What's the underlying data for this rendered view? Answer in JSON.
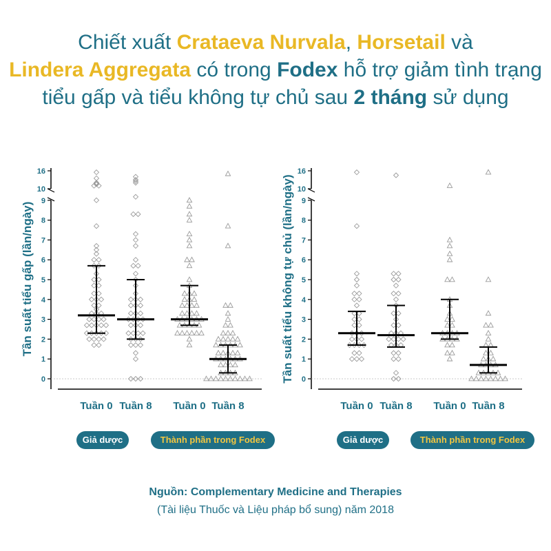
{
  "title": {
    "line1_a": "Chiết xuất ",
    "line1_hl1": "Crataeva Nurvala",
    "line1_b": ", ",
    "line1_hl2": "Horsetail",
    "line1_c": " và",
    "line2_hl": "Lindera Aggregata",
    "line2_a": " có trong ",
    "line2_brand": "Fodex",
    "line2_b": " hỗ trợ giảm tình trạng",
    "line3_a": "tiểu gấp và tiểu không tự chủ sau ",
    "line3_bold": "2 tháng",
    "line3_b": " sử dụng"
  },
  "colors": {
    "primary": "#1f6f86",
    "accent": "#e9b825",
    "marker": "#9a9a9a",
    "bar": "#000000"
  },
  "chart_data": [
    {
      "type": "scatter",
      "ylabel": "Tần suất tiểu gấp (lần/ngày)",
      "yticks_lower": [
        "0",
        "1",
        "2",
        "3",
        "4",
        "5",
        "6",
        "7",
        "8",
        "9"
      ],
      "yticks_upper": [
        "10",
        "16"
      ],
      "y_break": [
        9,
        10
      ],
      "ylim": [
        0,
        16
      ],
      "categories": [
        "Tuần 0",
        "Tuần 8",
        "Tuần 0",
        "Tuần 8"
      ],
      "groups": [
        {
          "name": "Giả dược",
          "marker": "diamond",
          "indices": [
            0,
            1
          ]
        },
        {
          "name": "Thành phần trong Fodex",
          "marker": "triangle",
          "indices": [
            2,
            3
          ]
        }
      ],
      "summary": [
        {
          "median": 3.2,
          "lower": 2.3,
          "upper": 5.7
        },
        {
          "median": 3.0,
          "lower": 2.0,
          "upper": 5.0
        },
        {
          "median": 3.0,
          "lower": 2.7,
          "upper": 4.7
        },
        {
          "median": 1.0,
          "lower": 0.3,
          "upper": 1.7
        }
      ],
      "points": [
        [
          15.5,
          13.5,
          12,
          11,
          11.5,
          11,
          11.8,
          9,
          7.7,
          6.7,
          6.5,
          6.3,
          6,
          6,
          5.7,
          5.7,
          5.3,
          5,
          5,
          4.7,
          4.7,
          4.3,
          4.3,
          4,
          4,
          4,
          3.7,
          3.7,
          3.5,
          3.3,
          3.3,
          3.3,
          3,
          3,
          3,
          3,
          2.7,
          2.7,
          2.7,
          2.7,
          2.7,
          2.3,
          2.3,
          2.3,
          2.3,
          2.3,
          2,
          2,
          2,
          2,
          1.7,
          1.7
        ],
        [
          14,
          13,
          12.5,
          12,
          9.3,
          8.3,
          8.3,
          7.3,
          7,
          6.7,
          6,
          5.7,
          5.7,
          5.3,
          5,
          4.7,
          4.3,
          4,
          4,
          4,
          3.7,
          3.7,
          3.7,
          3.3,
          3.3,
          3.3,
          3,
          3,
          3,
          3,
          2.7,
          2.7,
          2.7,
          2.3,
          2.3,
          2.3,
          2.3,
          2,
          2,
          2,
          1.7,
          1.7,
          1.7,
          1.3,
          1,
          0,
          0,
          0
        ],
        [
          9,
          8.7,
          8.3,
          8,
          7.3,
          7,
          6.7,
          6,
          6,
          5.7,
          5,
          4.7,
          4.3,
          4.3,
          4.3,
          4,
          4,
          4,
          3.7,
          3.7,
          3.7,
          3.7,
          3.3,
          3.3,
          3.3,
          3.3,
          3,
          3,
          3,
          3,
          3,
          3,
          2.7,
          2.7,
          2.7,
          2.7,
          2.7,
          2.3,
          2.3,
          2.3,
          2.3,
          2.3,
          2.3,
          2,
          1.7
        ],
        [
          15,
          7.7,
          6.7,
          3.7,
          3.7,
          3.3,
          3,
          2.7,
          2.7,
          2.3,
          2.3,
          2.3,
          2,
          2,
          2,
          2,
          2,
          1.7,
          1.7,
          1.7,
          1.7,
          1.7,
          1.7,
          1.3,
          1.3,
          1.3,
          1.3,
          1.3,
          1,
          1,
          1,
          1,
          1,
          1,
          0.7,
          0.7,
          0.7,
          0.7,
          0.3,
          0.3,
          0.3,
          0.3,
          0,
          0,
          0,
          0,
          0,
          0,
          0,
          0,
          0,
          0
        ]
      ]
    },
    {
      "type": "scatter",
      "ylabel": "Tần suất tiểu không tự chủ (lần/ngày)",
      "yticks_lower": [
        "0",
        "1",
        "2",
        "3",
        "4",
        "5",
        "6",
        "7",
        "8",
        "9"
      ],
      "yticks_upper": [
        "10",
        "16"
      ],
      "y_break": [
        9,
        10
      ],
      "ylim": [
        0,
        16
      ],
      "categories": [
        "Tuần 0",
        "Tuần 8",
        "Tuần 0",
        "Tuần 8"
      ],
      "groups": [
        {
          "name": "Giả dược",
          "marker": "diamond",
          "indices": [
            0,
            1
          ]
        },
        {
          "name": "Thành phần trong Fodex",
          "marker": "triangle",
          "indices": [
            2,
            3
          ]
        }
      ],
      "summary": [
        {
          "median": 2.3,
          "lower": 1.7,
          "upper": 3.4
        },
        {
          "median": 2.2,
          "lower": 1.6,
          "upper": 3.7
        },
        {
          "median": 2.3,
          "lower": 2.0,
          "upper": 4.0
        },
        {
          "median": 0.7,
          "lower": 0.3,
          "upper": 1.6
        }
      ],
      "points": [
        [
          15.5,
          7.7,
          5.3,
          5,
          4.7,
          4.3,
          4.3,
          4,
          4,
          3.7,
          3.3,
          3.3,
          3,
          3,
          2.7,
          2.7,
          2.3,
          2.3,
          2.3,
          2,
          2,
          2,
          1.7,
          1.7,
          1.7,
          1.7,
          1.3,
          1.3,
          1,
          1,
          1
        ],
        [
          14.5,
          5.3,
          5.3,
          5,
          5,
          4.7,
          4.3,
          4.3,
          4,
          3.7,
          3.3,
          3.3,
          3,
          2.7,
          2.7,
          2.3,
          2.3,
          2.3,
          2,
          2,
          2,
          2,
          1.7,
          1.7,
          1.7,
          1.3,
          1.3,
          1,
          1,
          0.3,
          0,
          0
        ],
        [
          11,
          7,
          6.7,
          6.3,
          6,
          5,
          5,
          4,
          3.7,
          3.3,
          3,
          3,
          2.7,
          2.7,
          2.3,
          2.3,
          2.3,
          2.3,
          2,
          2,
          2,
          2,
          1.7,
          1.7,
          1.3,
          1.3,
          1
        ],
        [
          15.5,
          5,
          3.3,
          2.7,
          2.7,
          2.3,
          2,
          1.7,
          1.7,
          1.3,
          1.3,
          1,
          1,
          1,
          0.7,
          0.7,
          0.7,
          0.7,
          0.3,
          0.3,
          0.3,
          0.3,
          0.3,
          0,
          0,
          0,
          0,
          0,
          0,
          0,
          0
        ]
      ]
    }
  ],
  "source": {
    "line1": "Nguồn: Complementary Medicine and Therapies",
    "line2": "(Tài liệu Thuốc và Liệu pháp bổ sung) năm 2018"
  }
}
